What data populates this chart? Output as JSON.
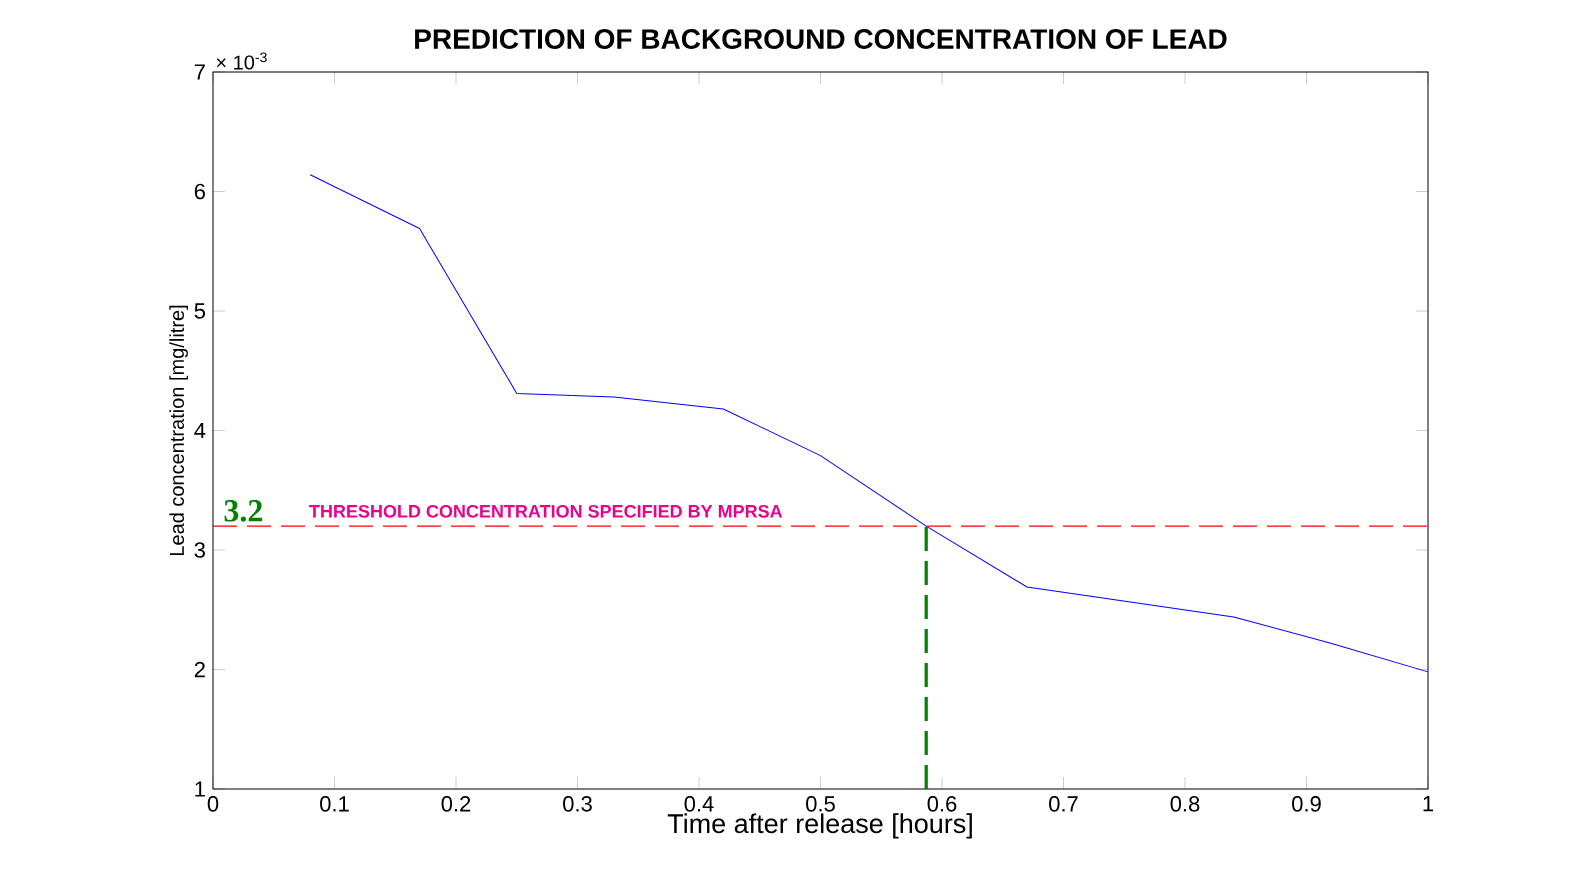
{
  "chart_data": {
    "type": "line",
    "title": "PREDICTION OF BACKGROUND CONCENTRATION OF LEAD",
    "xlabel": "Time after release [hours]",
    "ylabel": "Lead concentration [mg/litre]",
    "series": [
      {
        "color": "#0000ff",
        "x": [
          0.08,
          0.17,
          0.25,
          0.33,
          0.42,
          0.5,
          0.587,
          0.67,
          0.84,
          0.92,
          1.0
        ],
        "values": [
          6.14,
          5.69,
          4.31,
          4.28,
          4.18,
          3.79,
          3.2,
          2.69,
          2.44,
          2.22,
          1.98
        ],
        "line_style": "solid"
      },
      {
        "color": "#008000",
        "x": [
          0.587,
          0.587
        ],
        "values": [
          1,
          3.2
        ],
        "line_style": "dashed"
      }
    ],
    "xlim": [
      0,
      1
    ],
    "ylim": [
      1,
      7
    ],
    "xticks": [
      0,
      0.1,
      0.2,
      0.3,
      0.4,
      0.5,
      0.6,
      0.7,
      0.8,
      0.9,
      1
    ],
    "yticks": [
      1,
      2,
      3,
      4,
      5,
      6,
      7
    ],
    "ref_lines": [
      {
        "axis": "y",
        "value": 3.2,
        "label": "THRESHOLD  CONCENTRATION  SPECIFIED  BY  MPRSA",
        "color": "#ff0000",
        "line_style": "dashed"
      }
    ],
    "annotations": [
      "× 10$^{-3}$",
      {
        "text": "3.2",
        "x": 0.025,
        "y": 3.2
      }
    ],
    "grid": false,
    "marker": "none"
  }
}
